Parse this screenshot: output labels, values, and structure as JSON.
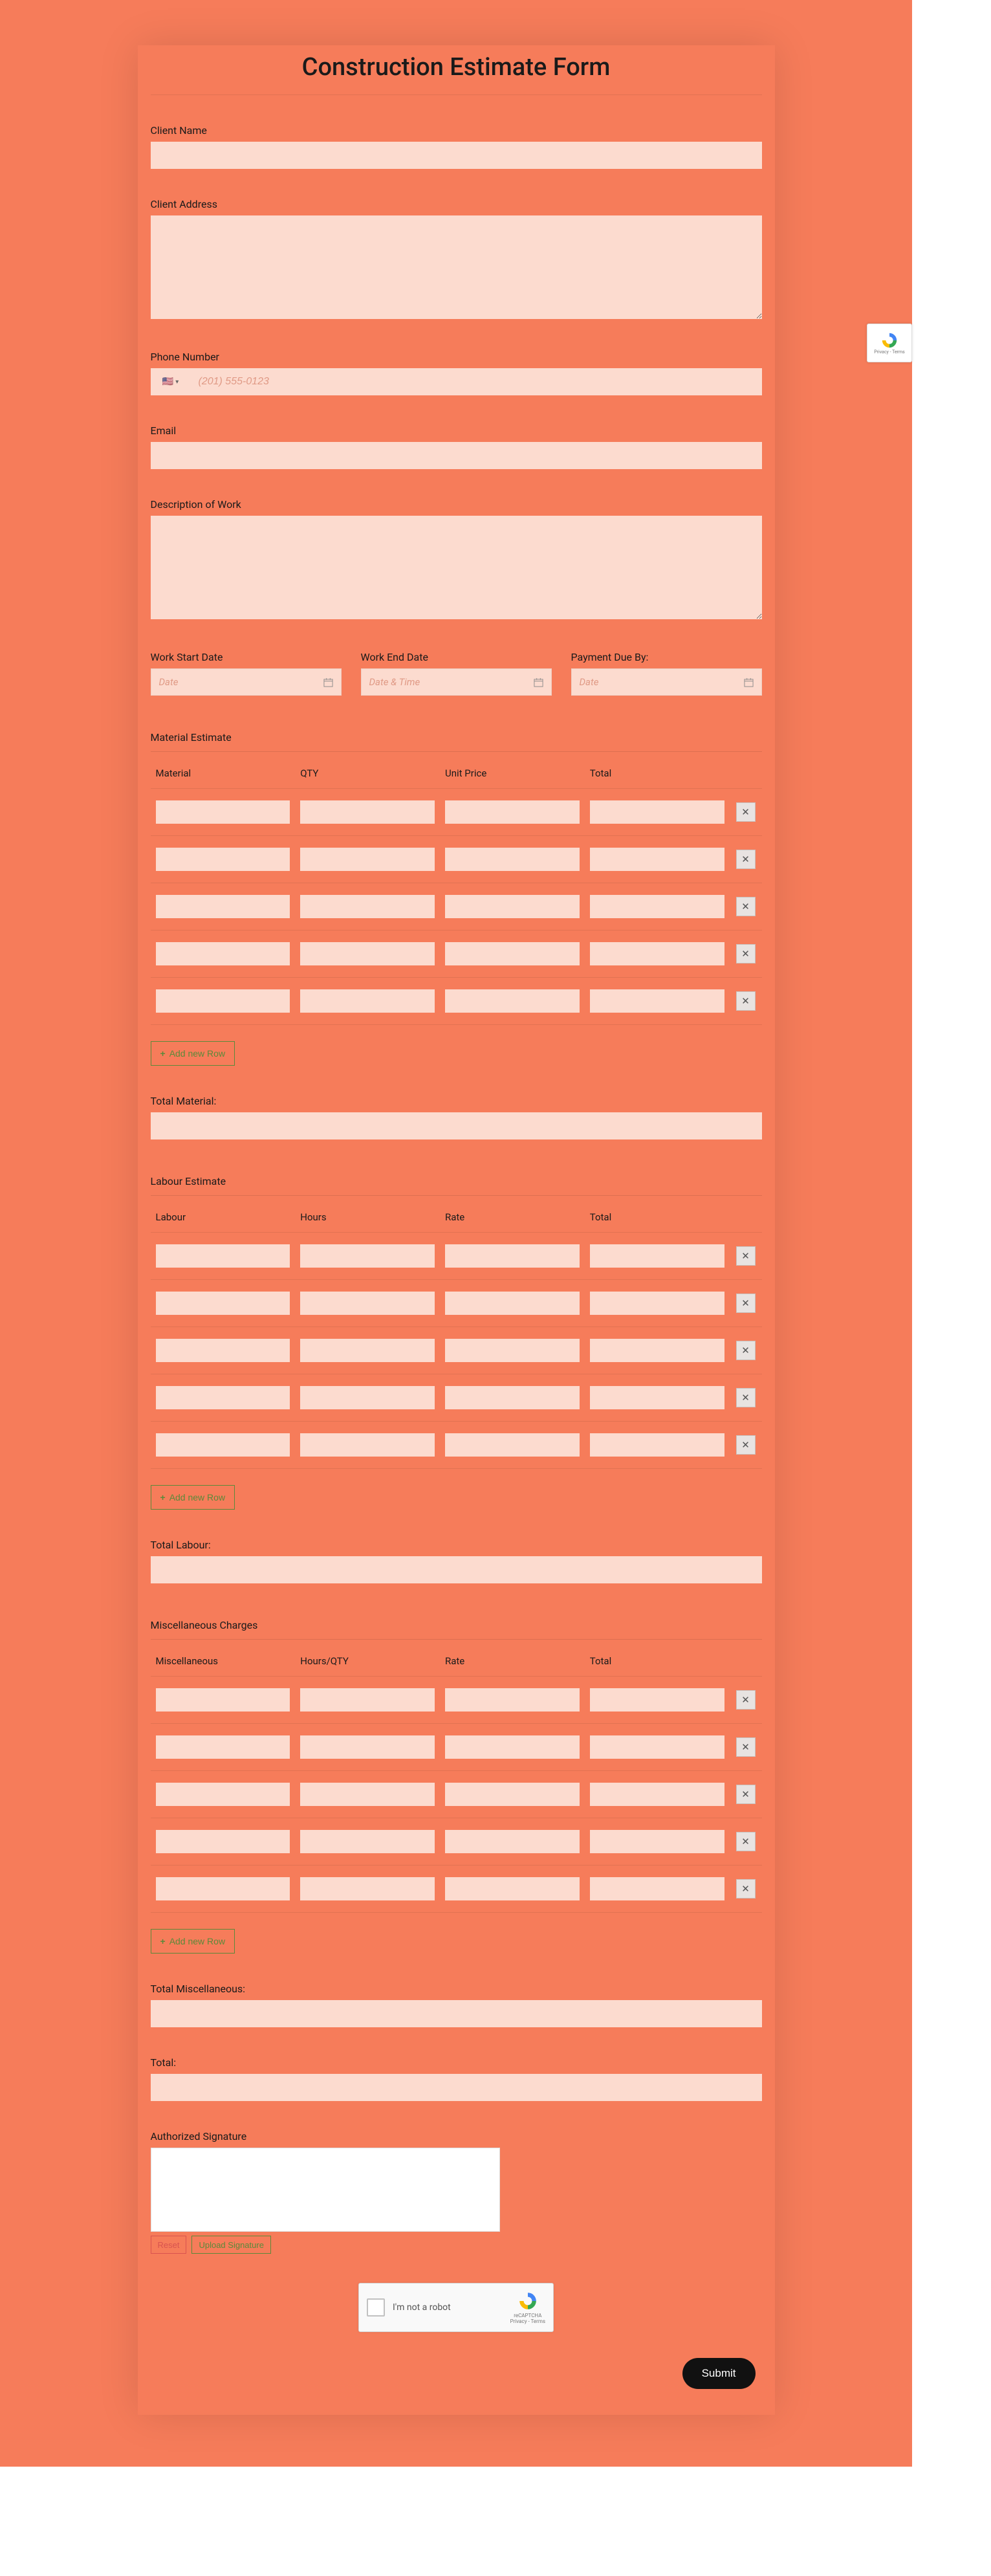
{
  "form": {
    "title": "Construction Estimate Form",
    "clientName": {
      "label": "Client Name",
      "value": ""
    },
    "clientAddress": {
      "label": "Client Address",
      "value": ""
    },
    "phone": {
      "label": "Phone Number",
      "placeholder": "(201) 555-0123",
      "flag": "🇺🇸"
    },
    "email": {
      "label": "Email",
      "value": ""
    },
    "description": {
      "label": "Description of Work",
      "value": ""
    },
    "dates": {
      "start": {
        "label": "Work Start Date",
        "placeholder": "Date"
      },
      "end": {
        "label": "Work End Date",
        "placeholder": "Date & Time"
      },
      "due": {
        "label": "Payment Due By:",
        "placeholder": "Date"
      }
    },
    "materialEstimate": {
      "title": "Material Estimate",
      "columns": [
        "Material",
        "QTY",
        "Unit Price",
        "Total"
      ],
      "rowCount": 5,
      "addRow": "+ Add new Row"
    },
    "totalMaterial": {
      "label": "Total Material:"
    },
    "labourEstimate": {
      "title": "Labour Estimate",
      "columns": [
        "Labour",
        "Hours",
        "Rate",
        "Total"
      ],
      "rowCount": 5,
      "addRow": "+ Add new Row"
    },
    "totalLabour": {
      "label": "Total Labour:"
    },
    "miscCharges": {
      "title": "Miscellaneous Charges",
      "columns": [
        "Miscellaneous",
        "Hours/QTY",
        "Rate",
        "Total"
      ],
      "rowCount": 5,
      "addRow": "+ Add new Row"
    },
    "totalMisc": {
      "label": "Total Miscellaneous:"
    },
    "grandTotal": {
      "label": "Total:"
    },
    "signature": {
      "label": "Authorized Signature",
      "reset": "Reset",
      "upload": "Upload Signature"
    },
    "recaptcha": {
      "text": "I'm not a robot",
      "brand": "reCAPTCHA",
      "terms": "Privacy - Terms"
    },
    "submit": "Submit"
  },
  "colors": {
    "pageBg": "#f67c5a",
    "inputBg": "#fcdbcf",
    "addRowBorder": "#5a8a3a",
    "submitBg": "#111111"
  }
}
